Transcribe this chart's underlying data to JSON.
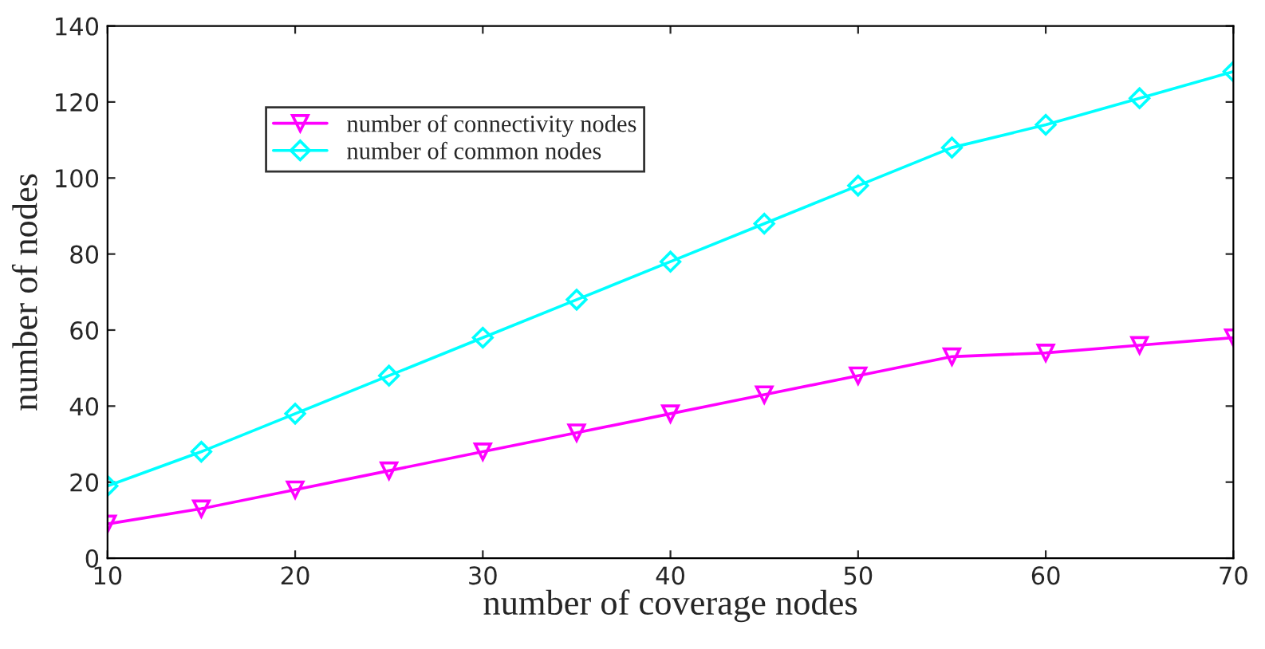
{
  "chart_data": {
    "type": "line",
    "xlabel": "number of coverage nodes",
    "ylabel": "number of nodes",
    "x": [
      10,
      15,
      20,
      25,
      30,
      35,
      40,
      45,
      50,
      55,
      60,
      65,
      70
    ],
    "series": [
      {
        "name": "number of connectivity nodes",
        "color": "#ff00ff",
        "marker": "triangle",
        "values": [
          9,
          13,
          18,
          23,
          28,
          33,
          38,
          43,
          48,
          53,
          54,
          56,
          58
        ]
      },
      {
        "name": "number of common nodes",
        "color": "#00ffff",
        "marker": "diamond",
        "values": [
          19,
          28,
          38,
          48,
          58,
          68,
          78,
          88,
          98,
          108,
          114,
          121,
          128
        ]
      }
    ],
    "xlim": [
      10,
      70
    ],
    "xticks": [
      10,
      20,
      30,
      40,
      50,
      60,
      70
    ],
    "ylim": [
      0,
      140
    ],
    "yticks": [
      0,
      20,
      40,
      60,
      80,
      100,
      120,
      140
    ],
    "grid": false,
    "legend": "top left",
    "line_style": "solid"
  }
}
